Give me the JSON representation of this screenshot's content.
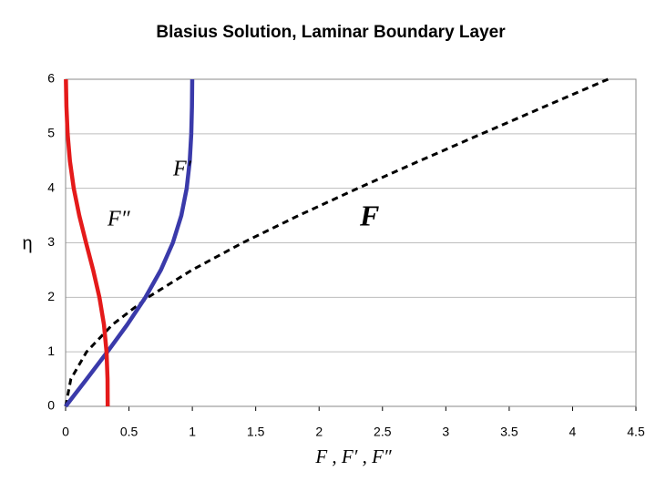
{
  "chart_data": {
    "type": "line",
    "title": "Blasius Solution, Laminar Boundary Layer",
    "x_label": "F , F′ , F″",
    "y_label": "η",
    "y": [
      0,
      0.5,
      1,
      1.5,
      2,
      2.5,
      3,
      3.5,
      4,
      4.5,
      5,
      5.5,
      6
    ],
    "series": [
      {
        "name": "F",
        "color": "#000000",
        "dashed": true,
        "values": [
          0,
          0.0415,
          0.1656,
          0.3701,
          0.65,
          0.9963,
          1.3968,
          1.8377,
          2.3057,
          2.7901,
          3.2833,
          3.7806,
          4.2796
        ]
      },
      {
        "name": "F′",
        "color": "#3a3aaa",
        "dashed": false,
        "values": [
          0,
          0.1659,
          0.3298,
          0.4868,
          0.6298,
          0.7513,
          0.846,
          0.913,
          0.9555,
          0.9795,
          0.9915,
          0.9969,
          0.999
        ]
      },
      {
        "name": "F″",
        "color": "#e41a1a",
        "dashed": false,
        "values": [
          0.3321,
          0.3309,
          0.323,
          0.3026,
          0.2668,
          0.2174,
          0.1614,
          0.1078,
          0.0642,
          0.034,
          0.0159,
          0.0066,
          0.0024
        ]
      }
    ],
    "xlim": [
      0,
      4.5
    ],
    "xticks": [
      0,
      0.5,
      1,
      1.5,
      2,
      2.5,
      3,
      3.5,
      4,
      4.5
    ],
    "ylim": [
      0,
      6
    ],
    "yticks": [
      0,
      1,
      2,
      3,
      4,
      5,
      6
    ],
    "grid": true
  }
}
